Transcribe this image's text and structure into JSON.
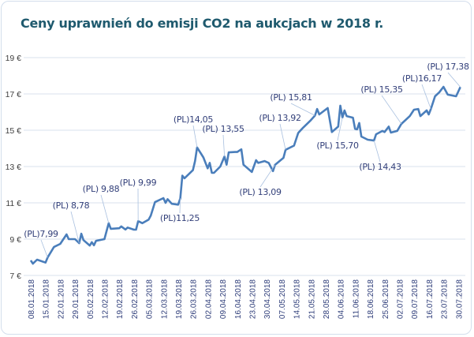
{
  "chart_data": {
    "type": "line",
    "title": "Ceny uprawnień do emisji CO2 na aukcjach w 2018 r.",
    "xlabel": "",
    "ylabel": "",
    "ylim": [
      7,
      19
    ],
    "yticks": [
      "7 €",
      "9 €",
      "11 €",
      "13 €",
      "15 €",
      "17 €",
      "19 €"
    ],
    "ytick_values": [
      7,
      9,
      11,
      13,
      15,
      17,
      19
    ],
    "xticks": [
      "08.01.2018",
      "15.01.2018",
      "22.01.2018",
      "29.01.2018",
      "05.02.2018",
      "12.02.2018",
      "19.02.2018",
      "26.02.2018",
      "05.03.2018",
      "12.03.2018",
      "19.03.2018",
      "26.03.2018",
      "02.04.2018",
      "09.04.2018",
      "16.04.2018",
      "23.04.2018",
      "30.04.2018",
      "07.05.2018",
      "14.05.2018",
      "21.05.2018",
      "28.05.2018",
      "04.06.2018",
      "11.06.2018",
      "18.06.2018",
      "25.06.2018",
      "02.07.2018",
      "09.07.2018",
      "16.07.2018",
      "23.07.2018",
      "30.07.2018"
    ],
    "grid": true,
    "legend": "none",
    "line_color": "#4a7ebb",
    "series": [
      {
        "x": [
          "08.01.2018",
          "09.01.2018",
          "11.01.2018",
          "15.01.2018",
          "16.01.2018",
          "19.01.2018",
          "22.01.2018",
          "25.01.2018",
          "26.01.2018",
          "29.01.2018",
          "31.01.2018",
          "01.02.2018",
          "02.02.2018",
          "05.02.2018",
          "06.02.2018",
          "07.02.2018",
          "08.02.2018",
          "12.02.2018",
          "14.02.2018",
          "15.02.2018",
          "19.02.2018",
          "20.02.2018",
          "22.02.2018",
          "23.02.2018",
          "26.02.2018",
          "27.02.2018",
          "28.02.2018",
          "02.03.2018",
          "05.03.2018",
          "06.03.2018",
          "08.03.2018",
          "12.03.2018",
          "13.03.2018",
          "14.03.2018",
          "16.03.2018",
          "19.03.2018",
          "20.03.2018",
          "21.03.2018",
          "22.03.2018",
          "26.03.2018",
          "27.03.2018",
          "28.03.2018",
          "31.03.2018",
          "02.04.2018",
          "03.04.2018",
          "04.04.2018",
          "05.04.2018",
          "08.04.2018",
          "10.04.2018",
          "11.04.2018",
          "12.04.2018",
          "15.04.2018",
          "16.04.2018",
          "18.04.2018",
          "19.04.2018",
          "23.04.2018",
          "25.04.2018",
          "26.04.2018",
          "29.04.2018",
          "01.05.2018",
          "03.05.2018",
          "04.05.2018",
          "08.05.2018",
          "09.05.2018",
          "13.05.2018",
          "15.05.2018",
          "17.05.2018",
          "21.05.2018",
          "23.05.2018",
          "24.05.2018",
          "25.05.2018",
          "29.05.2018",
          "31.05.2018",
          "03.06.2018",
          "04.06.2018",
          "05.06.2018",
          "06.06.2018",
          "07.06.2018",
          "10.06.2018",
          "11.06.2018",
          "12.06.2018",
          "13.06.2018",
          "14.06.2018",
          "17.06.2018",
          "20.06.2018",
          "21.06.2018",
          "24.06.2018",
          "25.06.2018",
          "27.06.2018",
          "28.06.2018",
          "01.07.2018",
          "03.07.2018",
          "07.07.2018",
          "09.07.2018",
          "11.07.2018",
          "12.07.2018",
          "15.07.2018",
          "16.07.2018",
          "17.07.2018",
          "19.07.2018",
          "21.07.2018",
          "23.07.2018",
          "25.07.2018",
          "29.07.2018",
          "31.07.2018"
        ],
        "values": [
          7.83,
          7.65,
          7.87,
          7.71,
          7.99,
          8.57,
          8.74,
          9.26,
          9.0,
          9.0,
          8.78,
          9.3,
          8.95,
          8.65,
          8.83,
          8.66,
          8.91,
          9.0,
          9.88,
          9.57,
          9.6,
          9.7,
          9.53,
          9.64,
          9.52,
          9.52,
          9.99,
          9.88,
          10.08,
          10.3,
          11.04,
          11.26,
          11.0,
          11.2,
          10.95,
          10.9,
          11.25,
          12.5,
          12.35,
          12.8,
          13.3,
          14.05,
          13.5,
          12.9,
          13.2,
          12.65,
          12.65,
          13.0,
          13.55,
          13.1,
          13.78,
          13.8,
          13.8,
          13.95,
          13.1,
          12.7,
          13.35,
          13.2,
          13.3,
          13.2,
          12.75,
          13.09,
          13.48,
          13.92,
          14.15,
          14.85,
          15.1,
          15.55,
          15.81,
          16.17,
          15.87,
          16.22,
          14.9,
          15.2,
          16.35,
          15.7,
          16.09,
          15.78,
          15.69,
          15.08,
          15.05,
          15.4,
          14.65,
          14.48,
          14.43,
          14.78,
          14.96,
          14.9,
          15.2,
          14.87,
          14.96,
          15.35,
          15.78,
          16.13,
          16.17,
          15.78,
          16.09,
          15.87,
          16.17,
          16.87,
          17.09,
          17.39,
          16.96,
          16.87,
          17.38
        ]
      }
    ],
    "annotations": [
      {
        "text": "(PL)7,99",
        "date": "16.01.2018",
        "value": 7.99
      },
      {
        "text": "(PL) 8,78",
        "date": "31.01.2018",
        "value": 8.78
      },
      {
        "text": "(PL) 9,88",
        "date": "14.02.2018",
        "value": 9.88
      },
      {
        "text": "(PL) 9,99",
        "date": "28.02.2018",
        "value": 9.99
      },
      {
        "text": "(PL)11,25",
        "date": "20.03.2018",
        "value": 11.25
      },
      {
        "text": "(PL)14,05",
        "date": "28.03.2018",
        "value": 14.05
      },
      {
        "text": "(PL) 13,55",
        "date": "10.04.2018",
        "value": 13.55
      },
      {
        "text": "(PL) 13,09",
        "date": "04.05.2018",
        "value": 13.09
      },
      {
        "text": "(PL) 13,92",
        "date": "09.05.2018",
        "value": 13.92
      },
      {
        "text": "(PL) 15,81",
        "date": "23.05.2018",
        "value": 15.81
      },
      {
        "text": "(PL) 15,70",
        "date": "05.06.2018",
        "value": 15.7
      },
      {
        "text": "(PL) 14,43",
        "date": "20.06.2018",
        "value": 14.43
      },
      {
        "text": "(PL) 15,35",
        "date": "03.07.2018",
        "value": 15.35
      },
      {
        "text": "(PL)16,17",
        "date": "17.07.2018",
        "value": 16.17
      },
      {
        "text": "(PL) 17,38",
        "date": "31.07.2018",
        "value": 17.38
      }
    ]
  }
}
